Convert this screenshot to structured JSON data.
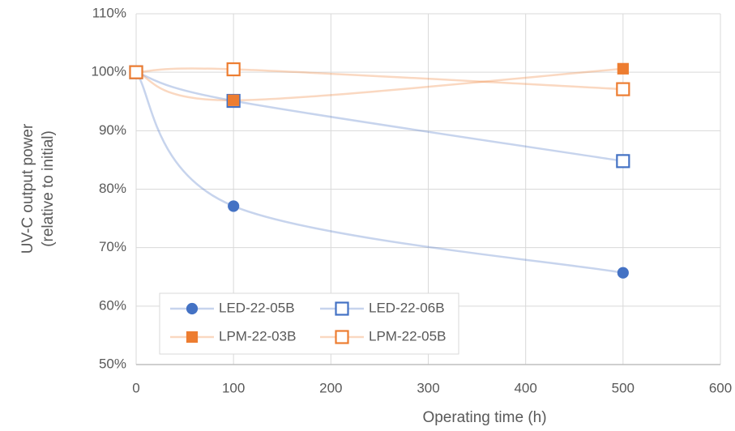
{
  "chart_data": {
    "type": "line",
    "ylabel": [
      "UV-C output power",
      "(relative to initial)"
    ],
    "xlabel": "Operating time (h)",
    "x": [
      0,
      100,
      500
    ],
    "series": [
      {
        "name": "LED-22-05B",
        "color": "#4472c4",
        "marker": "circle",
        "filled": true,
        "values": [
          100,
          77.1,
          65.7
        ]
      },
      {
        "name": "LED-22-06B",
        "color": "#4472c4",
        "marker": "square",
        "filled": false,
        "values": [
          100,
          95.1,
          84.8
        ]
      },
      {
        "name": "LPM-22-03B",
        "color": "#ed7d31",
        "marker": "square",
        "filled": true,
        "values": [
          100,
          95.2,
          100.6
        ]
      },
      {
        "name": "LPM-22-05B",
        "color": "#ed7d31",
        "marker": "square",
        "filled": false,
        "values": [
          100,
          100.5,
          97.1
        ]
      }
    ],
    "xlim": [
      0,
      600
    ],
    "xticks": [
      0,
      100,
      200,
      300,
      400,
      500,
      600
    ],
    "ylim": [
      50,
      110
    ],
    "yticks": [
      {
        "value": 50,
        "label": "50%"
      },
      {
        "value": 60,
        "label": "60%"
      },
      {
        "value": 70,
        "label": "70%"
      },
      {
        "value": 80,
        "label": "80%"
      },
      {
        "value": 90,
        "label": "90%"
      },
      {
        "value": 100,
        "label": "100%"
      },
      {
        "value": 110,
        "label": "110%"
      }
    ],
    "grid": true,
    "smooth": true,
    "legend": "lower left"
  }
}
